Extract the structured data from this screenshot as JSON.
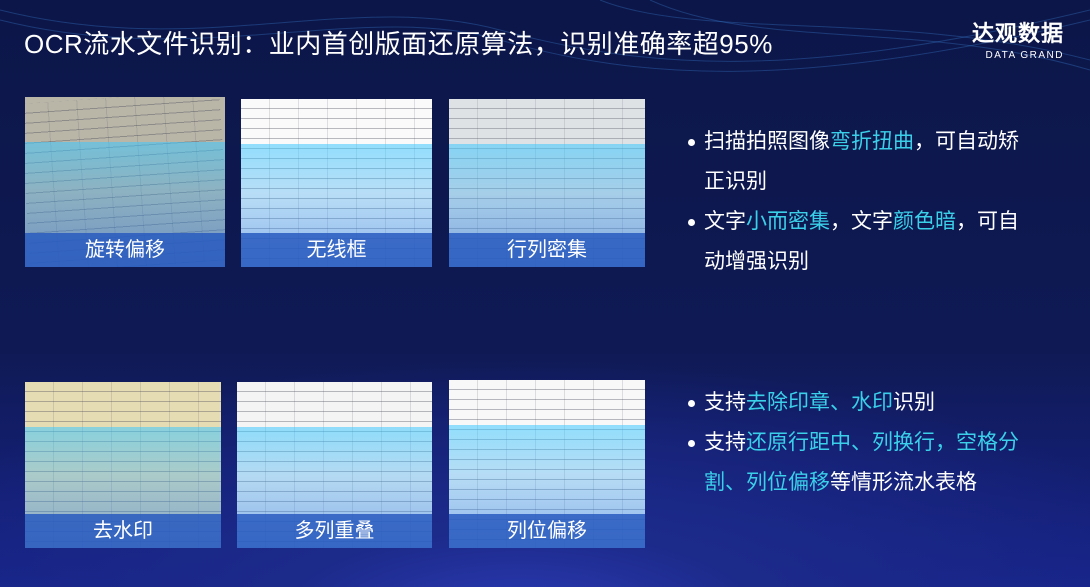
{
  "header": {
    "title": "OCR流水文件识别：业内首创版面还原算法，识别准确率超95%",
    "logo_cn": "达观数据",
    "logo_en": "DATA GRAND"
  },
  "thumbnails": [
    {
      "caption": "旋转偏移"
    },
    {
      "caption": "无线框"
    },
    {
      "caption": "行列密集"
    },
    {
      "caption": "去水印"
    },
    {
      "caption": "多列重叠"
    },
    {
      "caption": "列位偏移"
    }
  ],
  "colors": {
    "highlight": "#3ad0ea",
    "background": "#0f1a55"
  },
  "bullets_top": [
    [
      {
        "t": "扫描拍照图像",
        "h": false
      },
      {
        "t": "弯折扭曲",
        "h": true
      },
      {
        "t": "，可自动矫正识别",
        "h": false
      }
    ],
    [
      {
        "t": "文字",
        "h": false
      },
      {
        "t": "小而密集",
        "h": true
      },
      {
        "t": "，文字",
        "h": false
      },
      {
        "t": "颜色暗",
        "h": true
      },
      {
        "t": "，可自动增强识别",
        "h": false
      }
    ]
  ],
  "bullets_bottom": [
    [
      {
        "t": "支持",
        "h": false
      },
      {
        "t": "去除印章、水印",
        "h": true
      },
      {
        "t": "识别",
        "h": false
      }
    ],
    [
      {
        "t": "支持",
        "h": false
      },
      {
        "t": "还原行距中、列换行，空格分割、列位偏移",
        "h": true
      },
      {
        "t": "等情形流水表格",
        "h": false
      }
    ]
  ]
}
